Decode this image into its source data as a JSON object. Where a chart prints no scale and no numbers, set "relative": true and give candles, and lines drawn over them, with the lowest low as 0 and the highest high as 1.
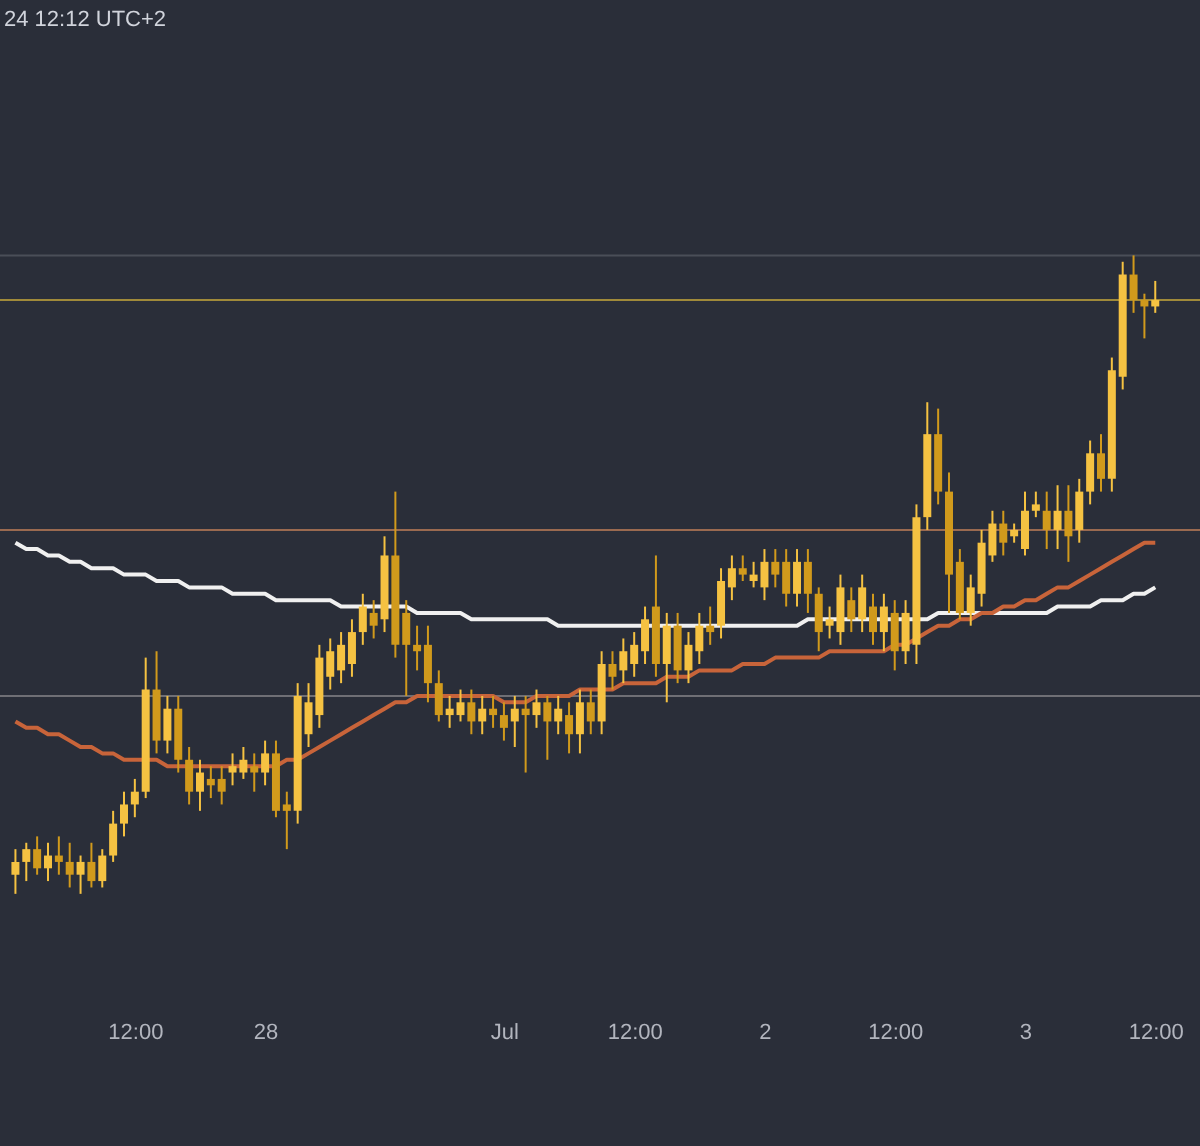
{
  "chart_data": {
    "type": "candlestick",
    "relative": true,
    "grid": false,
    "colors": [
      "#f5c242",
      "#f5c242",
      "#d19a1c",
      "#f5c242",
      "#d19a1c",
      "#d19a1c",
      "#f5c242",
      "#d19a1c",
      "#f5c242",
      "#f5c242",
      "#f5c242",
      "#f5c242",
      "#f5c242",
      "#d19a1c",
      "#f5c242",
      "#d19a1c",
      "#d19a1c",
      "#f5c242",
      "#d19a1c",
      "#d19a1c",
      "#f5c242",
      "#f5c242",
      "#d19a1c",
      "#f5c242",
      "#d19a1c",
      "#d19a1c",
      "#f5c242",
      "#f5c242",
      "#f5c242",
      "#f5c242",
      "#f5c242",
      "#f5c242",
      "#f5c242",
      "#d19a1c",
      "#f5c242",
      "#d19a1c",
      "#d19a1c",
      "#d19a1c",
      "#d19a1c",
      "#d19a1c",
      "#f5c242",
      "#f5c242",
      "#d19a1c",
      "#f5c242",
      "#d19a1c",
      "#d19a1c",
      "#f5c242",
      "#d19a1c",
      "#f5c242",
      "#d19a1c",
      "#f5c242",
      "#d19a1c",
      "#f5c242",
      "#d19a1c",
      "#f5c242",
      "#d19a1c",
      "#f5c242",
      "#f5c242",
      "#f5c242",
      "#d19a1c",
      "#f5c242",
      "#d19a1c",
      "#f5c242",
      "#f5c242",
      "#d19a1c",
      "#f5c242",
      "#f5c242",
      "#d19a1c",
      "#f5c242",
      "#f5c242",
      "#d19a1c",
      "#d19a1c",
      "#f5c242",
      "#d19a1c",
      "#d19a1c",
      "#f5c242",
      "#f5c242",
      "#d19a1c",
      "#f5c242",
      "#d19a1c",
      "#f5c242",
      "#d19a1c",
      "#f5c242",
      "#f5c242",
      "#f5c242",
      "#d19a1c",
      "#d19a1c",
      "#d19a1c",
      "#f5c242",
      "#f5c242",
      "#f5c242",
      "#d19a1c",
      "#f5c242",
      "#f5c242",
      "#f5c242",
      "#d19a1c",
      "#f5c242",
      "#d19a1c",
      "#f5c242",
      "#f5c242",
      "#d19a1c",
      "#f5c242",
      "#f5c242",
      "#d19a1c",
      "#d19a1c",
      "#f5c242"
    ],
    "annotations": [
      "24 12:12 UTC+2"
    ],
    "categories": [
      null,
      null,
      null,
      null,
      null,
      null,
      null,
      null,
      null,
      null,
      null,
      "12:00",
      null,
      null,
      null,
      null,
      null,
      null,
      null,
      null,
      null,
      null,
      null,
      "28",
      null,
      null,
      null,
      null,
      null,
      null,
      null,
      null,
      null,
      null,
      null,
      null,
      null,
      null,
      null,
      null,
      null,
      null,
      null,
      null,
      null,
      "Jul",
      null,
      null,
      null,
      null,
      null,
      null,
      null,
      null,
      null,
      null,
      null,
      "12:00",
      null,
      null,
      null,
      null,
      null,
      null,
      null,
      null,
      null,
      null,
      null,
      "2",
      null,
      null,
      null,
      null,
      null,
      null,
      null,
      null,
      null,
      null,
      null,
      "12:00",
      null,
      null,
      null,
      null,
      null,
      null,
      null,
      null,
      null,
      null,
      null,
      "3",
      null,
      null,
      null,
      null,
      null,
      null,
      null,
      null,
      null,
      null,
      null,
      "12:00"
    ],
    "ohlc": [
      [
        0.03,
        0.07,
        0.0,
        0.05
      ],
      [
        0.05,
        0.08,
        0.02,
        0.07
      ],
      [
        0.07,
        0.09,
        0.03,
        0.04
      ],
      [
        0.04,
        0.08,
        0.02,
        0.06
      ],
      [
        0.06,
        0.09,
        0.03,
        0.05
      ],
      [
        0.05,
        0.08,
        0.01,
        0.03
      ],
      [
        0.03,
        0.06,
        0.0,
        0.05
      ],
      [
        0.05,
        0.08,
        0.01,
        0.02
      ],
      [
        0.02,
        0.07,
        0.01,
        0.06
      ],
      [
        0.06,
        0.13,
        0.05,
        0.11
      ],
      [
        0.11,
        0.16,
        0.09,
        0.14
      ],
      [
        0.14,
        0.18,
        0.12,
        0.16
      ],
      [
        0.16,
        0.37,
        0.15,
        0.32
      ],
      [
        0.32,
        0.38,
        0.22,
        0.24
      ],
      [
        0.24,
        0.31,
        0.22,
        0.29
      ],
      [
        0.29,
        0.31,
        0.19,
        0.21
      ],
      [
        0.21,
        0.23,
        0.14,
        0.16
      ],
      [
        0.16,
        0.21,
        0.13,
        0.19
      ],
      [
        0.18,
        0.2,
        0.15,
        0.17
      ],
      [
        0.18,
        0.2,
        0.14,
        0.16
      ],
      [
        0.19,
        0.22,
        0.17,
        0.2
      ],
      [
        0.19,
        0.23,
        0.18,
        0.21
      ],
      [
        0.2,
        0.22,
        0.16,
        0.19
      ],
      [
        0.19,
        0.24,
        0.17,
        0.22
      ],
      [
        0.22,
        0.24,
        0.12,
        0.13
      ],
      [
        0.14,
        0.16,
        0.07,
        0.13
      ],
      [
        0.13,
        0.33,
        0.11,
        0.31
      ],
      [
        0.25,
        0.33,
        0.23,
        0.3
      ],
      [
        0.28,
        0.39,
        0.26,
        0.37
      ],
      [
        0.34,
        0.4,
        0.32,
        0.38
      ],
      [
        0.35,
        0.41,
        0.33,
        0.39
      ],
      [
        0.36,
        0.43,
        0.34,
        0.41
      ],
      [
        0.41,
        0.47,
        0.39,
        0.45
      ],
      [
        0.44,
        0.46,
        0.4,
        0.42
      ],
      [
        0.43,
        0.56,
        0.41,
        0.53
      ],
      [
        0.53,
        0.63,
        0.37,
        0.39
      ],
      [
        0.44,
        0.46,
        0.31,
        0.39
      ],
      [
        0.39,
        0.42,
        0.35,
        0.38
      ],
      [
        0.39,
        0.42,
        0.3,
        0.33
      ],
      [
        0.33,
        0.35,
        0.27,
        0.28
      ],
      [
        0.28,
        0.31,
        0.26,
        0.29
      ],
      [
        0.28,
        0.32,
        0.27,
        0.3
      ],
      [
        0.3,
        0.32,
        0.25,
        0.27
      ],
      [
        0.27,
        0.31,
        0.25,
        0.29
      ],
      [
        0.29,
        0.31,
        0.26,
        0.28
      ],
      [
        0.28,
        0.3,
        0.24,
        0.26
      ],
      [
        0.27,
        0.31,
        0.23,
        0.29
      ],
      [
        0.29,
        0.31,
        0.19,
        0.28
      ],
      [
        0.28,
        0.32,
        0.26,
        0.3
      ],
      [
        0.3,
        0.31,
        0.21,
        0.27
      ],
      [
        0.27,
        0.31,
        0.25,
        0.29
      ],
      [
        0.28,
        0.3,
        0.22,
        0.25
      ],
      [
        0.25,
        0.32,
        0.22,
        0.3
      ],
      [
        0.3,
        0.32,
        0.25,
        0.27
      ],
      [
        0.27,
        0.38,
        0.25,
        0.36
      ],
      [
        0.36,
        0.38,
        0.32,
        0.34
      ],
      [
        0.35,
        0.4,
        0.33,
        0.38
      ],
      [
        0.36,
        0.41,
        0.34,
        0.39
      ],
      [
        0.38,
        0.45,
        0.36,
        0.43
      ],
      [
        0.45,
        0.53,
        0.34,
        0.36
      ],
      [
        0.36,
        0.44,
        0.3,
        0.42
      ],
      [
        0.42,
        0.44,
        0.33,
        0.35
      ],
      [
        0.35,
        0.41,
        0.33,
        0.39
      ],
      [
        0.38,
        0.44,
        0.36,
        0.42
      ],
      [
        0.42,
        0.45,
        0.39,
        0.41
      ],
      [
        0.42,
        0.51,
        0.4,
        0.49
      ],
      [
        0.48,
        0.53,
        0.46,
        0.51
      ],
      [
        0.51,
        0.53,
        0.49,
        0.5
      ],
      [
        0.49,
        0.52,
        0.48,
        0.5
      ],
      [
        0.48,
        0.54,
        0.46,
        0.52
      ],
      [
        0.52,
        0.54,
        0.48,
        0.5
      ],
      [
        0.52,
        0.54,
        0.45,
        0.47
      ],
      [
        0.47,
        0.54,
        0.45,
        0.52
      ],
      [
        0.52,
        0.54,
        0.44,
        0.47
      ],
      [
        0.47,
        0.48,
        0.38,
        0.41
      ],
      [
        0.42,
        0.45,
        0.4,
        0.43
      ],
      [
        0.41,
        0.5,
        0.39,
        0.48
      ],
      [
        0.46,
        0.48,
        0.41,
        0.43
      ],
      [
        0.43,
        0.5,
        0.41,
        0.48
      ],
      [
        0.45,
        0.47,
        0.39,
        0.41
      ],
      [
        0.41,
        0.47,
        0.38,
        0.45
      ],
      [
        0.44,
        0.46,
        0.35,
        0.38
      ],
      [
        0.38,
        0.46,
        0.36,
        0.44
      ],
      [
        0.39,
        0.61,
        0.36,
        0.59
      ],
      [
        0.59,
        0.77,
        0.57,
        0.72
      ],
      [
        0.72,
        0.76,
        0.61,
        0.63
      ],
      [
        0.63,
        0.66,
        0.44,
        0.5
      ],
      [
        0.52,
        0.54,
        0.43,
        0.44
      ],
      [
        0.44,
        0.5,
        0.42,
        0.48
      ],
      [
        0.47,
        0.57,
        0.45,
        0.55
      ],
      [
        0.53,
        0.6,
        0.52,
        0.58
      ],
      [
        0.58,
        0.6,
        0.53,
        0.55
      ],
      [
        0.56,
        0.58,
        0.55,
        0.57
      ],
      [
        0.54,
        0.63,
        0.53,
        0.6
      ],
      [
        0.6,
        0.63,
        0.59,
        0.61
      ],
      [
        0.6,
        0.63,
        0.54,
        0.57
      ],
      [
        0.57,
        0.64,
        0.54,
        0.6
      ],
      [
        0.6,
        0.64,
        0.52,
        0.56
      ],
      [
        0.57,
        0.65,
        0.55,
        0.63
      ],
      [
        0.63,
        0.71,
        0.61,
        0.69
      ],
      [
        0.69,
        0.72,
        0.63,
        0.65
      ],
      [
        0.65,
        0.84,
        0.63,
        0.82
      ],
      [
        0.81,
        0.99,
        0.79,
        0.97
      ],
      [
        0.97,
        1.0,
        0.91,
        0.93
      ],
      [
        0.93,
        0.94,
        0.87,
        0.92
      ],
      [
        0.92,
        0.96,
        0.91,
        0.93
      ]
    ],
    "series": [
      {
        "type": "line",
        "color": "#f0f0f0",
        "values": [
          0.55,
          0.54,
          0.54,
          0.53,
          0.53,
          0.52,
          0.52,
          0.51,
          0.51,
          0.51,
          0.5,
          0.5,
          0.5,
          0.49,
          0.49,
          0.49,
          0.48,
          0.48,
          0.48,
          0.48,
          0.47,
          0.47,
          0.47,
          0.47,
          0.46,
          0.46,
          0.46,
          0.46,
          0.46,
          0.46,
          0.45,
          0.45,
          0.45,
          0.45,
          0.45,
          0.45,
          0.45,
          0.44,
          0.44,
          0.44,
          0.44,
          0.44,
          0.43,
          0.43,
          0.43,
          0.43,
          0.43,
          0.43,
          0.43,
          0.43,
          0.42,
          0.42,
          0.42,
          0.42,
          0.42,
          0.42,
          0.42,
          0.42,
          0.42,
          0.42,
          0.42,
          0.42,
          0.42,
          0.42,
          0.42,
          0.42,
          0.42,
          0.42,
          0.42,
          0.42,
          0.42,
          0.42,
          0.42,
          0.43,
          0.43,
          0.43,
          0.43,
          0.43,
          0.43,
          0.43,
          0.43,
          0.43,
          0.43,
          0.43,
          0.43,
          0.44,
          0.44,
          0.44,
          0.44,
          0.44,
          0.44,
          0.44,
          0.44,
          0.44,
          0.44,
          0.44,
          0.45,
          0.45,
          0.45,
          0.45,
          0.46,
          0.46,
          0.46,
          0.47,
          0.47,
          0.48
        ]
      },
      {
        "type": "line",
        "color": "#c8643a",
        "values": [
          0.27,
          0.26,
          0.26,
          0.25,
          0.25,
          0.24,
          0.23,
          0.23,
          0.22,
          0.22,
          0.21,
          0.21,
          0.21,
          0.21,
          0.2,
          0.2,
          0.2,
          0.2,
          0.2,
          0.2,
          0.2,
          0.2,
          0.2,
          0.2,
          0.2,
          0.21,
          0.21,
          0.22,
          0.23,
          0.24,
          0.25,
          0.26,
          0.27,
          0.28,
          0.29,
          0.3,
          0.3,
          0.31,
          0.31,
          0.31,
          0.31,
          0.31,
          0.31,
          0.31,
          0.31,
          0.3,
          0.3,
          0.3,
          0.31,
          0.31,
          0.31,
          0.31,
          0.32,
          0.32,
          0.32,
          0.32,
          0.33,
          0.33,
          0.33,
          0.33,
          0.34,
          0.34,
          0.34,
          0.35,
          0.35,
          0.35,
          0.35,
          0.36,
          0.36,
          0.36,
          0.37,
          0.37,
          0.37,
          0.37,
          0.37,
          0.38,
          0.38,
          0.38,
          0.38,
          0.38,
          0.38,
          0.39,
          0.39,
          0.4,
          0.41,
          0.42,
          0.42,
          0.43,
          0.43,
          0.44,
          0.44,
          0.45,
          0.45,
          0.46,
          0.46,
          0.47,
          0.48,
          0.48,
          0.49,
          0.5,
          0.51,
          0.52,
          0.53,
          0.54,
          0.55,
          0.55
        ]
      }
    ],
    "ref_lines": [
      {
        "axis": "y",
        "value": 0.57,
        "color": "#9a6a50"
      },
      {
        "axis": "y",
        "value": 0.31,
        "color": "#6f6f75"
      },
      {
        "axis": "y",
        "value": 0.93,
        "color": "#a08a3a"
      },
      {
        "axis": "y",
        "value": 1.0,
        "color": "#4a4e58"
      }
    ]
  }
}
